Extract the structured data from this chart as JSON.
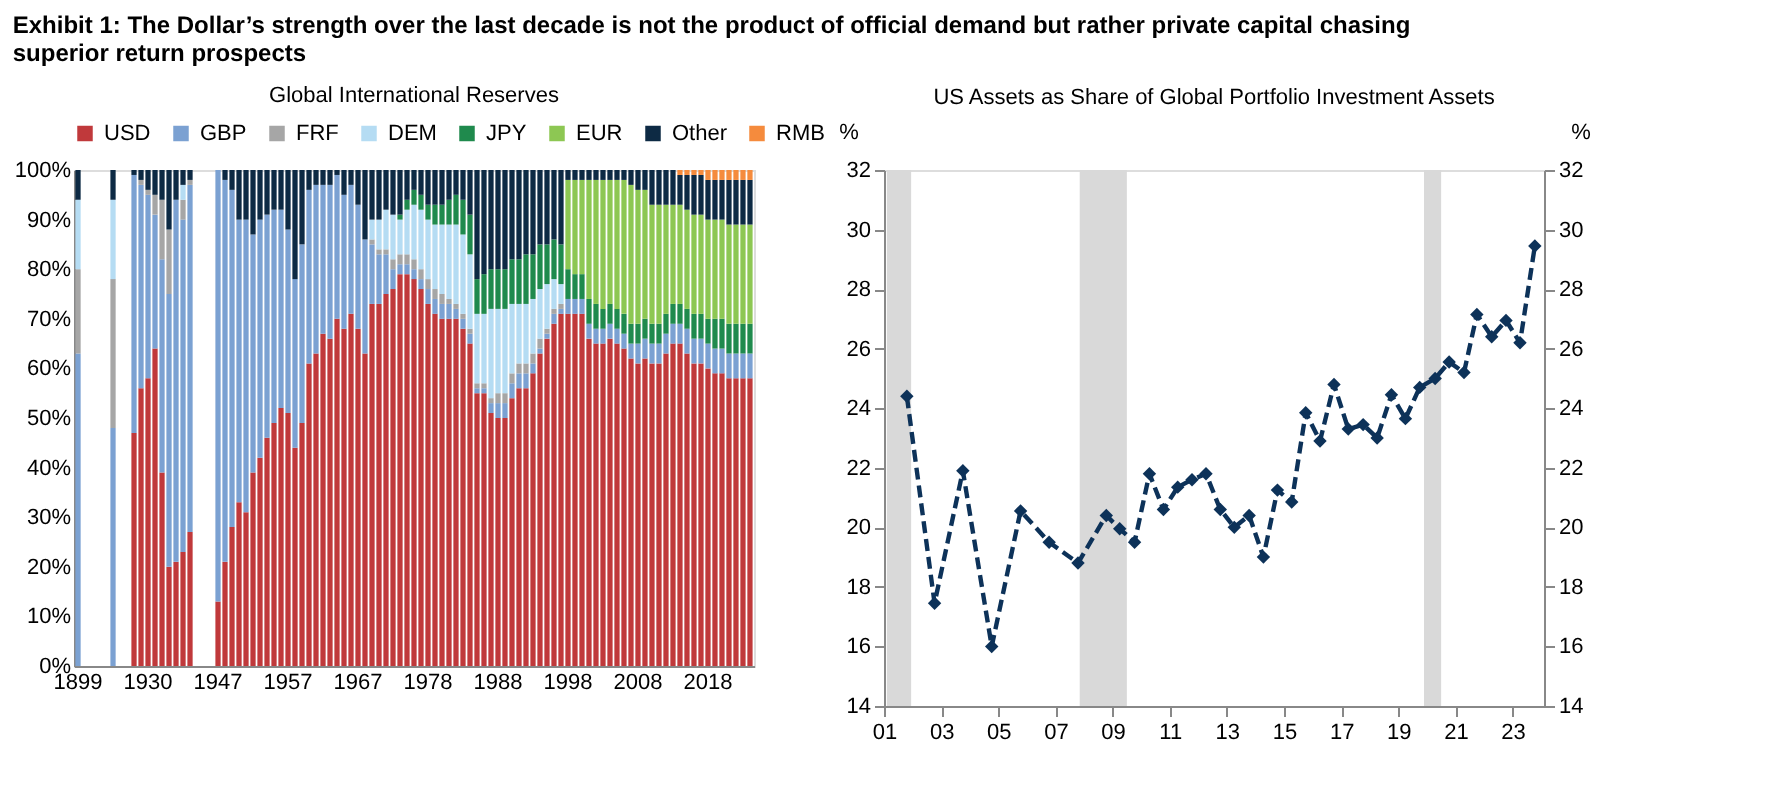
{
  "chart_data": [
    {
      "type": "bar",
      "title": "Global International Reserves",
      "stacked": true,
      "legend": "top",
      "grid": false,
      "annotations": [
        "Exhibit 1: The Dollar’s strength over the last decade is not the product of official demand but rather private capital chasing superior return prospects"
      ],
      "categories": [
        "1899",
        null,
        null,
        null,
        null,
        null,
        null,
        null,
        null,
        null,
        "1930",
        null,
        null,
        null,
        null,
        null,
        null,
        null,
        null,
        null,
        "1947",
        null,
        null,
        null,
        null,
        null,
        null,
        null,
        null,
        null,
        "1957",
        null,
        null,
        null,
        null,
        null,
        null,
        null,
        null,
        null,
        "1967",
        null,
        null,
        null,
        null,
        null,
        null,
        null,
        null,
        null,
        "1978",
        null,
        null,
        null,
        null,
        null,
        null,
        null,
        null,
        null,
        "1988",
        null,
        null,
        null,
        null,
        null,
        null,
        null,
        null,
        null,
        "1998",
        null,
        null,
        null,
        null,
        null,
        null,
        null,
        null,
        null,
        "2008",
        null,
        null,
        null,
        null,
        null,
        null,
        null,
        null,
        null,
        "2018",
        null,
        null,
        null,
        null,
        null,
        null
      ],
      "ylim": [
        0,
        100
      ],
      "yticks": [
        {
          "value": 0,
          "label": "0%"
        },
        {
          "value": 10,
          "label": "10%"
        },
        {
          "value": 20,
          "label": "20%"
        },
        {
          "value": 30,
          "label": "30%"
        },
        {
          "value": 40,
          "label": "40%"
        },
        {
          "value": 50,
          "label": "50%"
        },
        {
          "value": 60,
          "label": "60%"
        },
        {
          "value": 70,
          "label": "70%"
        },
        {
          "value": 80,
          "label": "80%"
        },
        {
          "value": 90,
          "label": "90%"
        },
        {
          "value": 100,
          "label": "100%"
        }
      ],
      "series": [
        {
          "name": "USD",
          "color": "#c0393b",
          "values": [
            null,
            null,
            null,
            null,
            null,
            null,
            null,
            null,
            47,
            56,
            58,
            64,
            39,
            20,
            21,
            23,
            27,
            null,
            null,
            null,
            13,
            21,
            28,
            33,
            31,
            39,
            42,
            46,
            49,
            52,
            51,
            44,
            49,
            61,
            63,
            67,
            66,
            70,
            68,
            71,
            68,
            63,
            73,
            73,
            75,
            76,
            79,
            79,
            78,
            76,
            73,
            71,
            70,
            70,
            70,
            68,
            65,
            55,
            55,
            51,
            50,
            50,
            54,
            56,
            56,
            59,
            63,
            66,
            69,
            71,
            71,
            71,
            71,
            66,
            65,
            65,
            66,
            65,
            64,
            62,
            61,
            62,
            61,
            61,
            63,
            65,
            65,
            63,
            61,
            61,
            60,
            59,
            59,
            58,
            58,
            58,
            58
          ]
        },
        {
          "name": "GBP",
          "color": "#7ba1d2",
          "values": [
            63,
            null,
            null,
            null,
            null,
            48,
            null,
            null,
            52,
            41,
            37,
            27,
            43,
            55,
            73,
            67,
            70,
            null,
            null,
            null,
            87,
            77,
            68,
            57,
            59,
            48,
            48,
            45,
            43,
            40,
            37,
            34,
            36,
            35,
            34,
            30,
            31,
            29,
            27,
            26,
            25,
            23,
            12,
            10,
            8,
            4,
            2,
            2,
            2,
            2,
            3,
            3,
            3,
            3,
            2,
            2,
            2,
            1,
            1,
            2,
            3,
            3,
            3,
            3,
            3,
            2,
            1,
            1,
            2,
            1,
            3,
            3,
            3,
            3,
            3,
            3,
            3,
            3,
            3,
            3,
            4,
            4,
            4,
            4,
            4,
            4,
            4,
            5,
            5,
            5,
            5,
            5,
            5,
            5,
            5,
            5,
            5
          ]
        },
        {
          "name": "FRF",
          "color": "#a6a6a6",
          "values": [
            17,
            null,
            null,
            null,
            null,
            30,
            null,
            null,
            null,
            1,
            1,
            4,
            12,
            13,
            null,
            4,
            1,
            null,
            null,
            null,
            null,
            null,
            null,
            null,
            null,
            null,
            null,
            null,
            null,
            null,
            null,
            null,
            null,
            null,
            null,
            null,
            null,
            null,
            null,
            null,
            null,
            null,
            1,
            1,
            1,
            2,
            2,
            2,
            2,
            2,
            2,
            2,
            2,
            1,
            1,
            1,
            1,
            1,
            1,
            1,
            2,
            2,
            2,
            2,
            2,
            2,
            2,
            1,
            1,
            1,
            null,
            null,
            null,
            null,
            null,
            null,
            null,
            null,
            null,
            null,
            null,
            null,
            null,
            null,
            null,
            null,
            null,
            null,
            null,
            null,
            null,
            null,
            null,
            null,
            null,
            null,
            null
          ]
        },
        {
          "name": "DEM",
          "color": "#b5dcf3",
          "values": [
            14,
            null,
            null,
            null,
            null,
            16,
            null,
            null,
            null,
            null,
            null,
            null,
            null,
            null,
            null,
            3,
            null,
            null,
            null,
            null,
            null,
            null,
            null,
            null,
            null,
            null,
            null,
            null,
            null,
            null,
            null,
            null,
            null,
            null,
            null,
            null,
            null,
            null,
            null,
            null,
            null,
            null,
            4,
            6,
            8,
            9,
            7,
            9,
            11,
            12,
            12,
            13,
            14,
            15,
            16,
            16,
            15,
            14,
            14,
            18,
            17,
            17,
            14,
            12,
            12,
            11,
            10,
            9,
            6,
            4,
            null,
            null,
            null,
            null,
            null,
            null,
            null,
            null,
            null,
            null,
            null,
            null,
            null,
            null,
            null,
            null,
            null,
            null,
            null,
            null,
            null,
            null,
            null,
            null,
            null,
            null,
            null
          ]
        },
        {
          "name": "JPY",
          "color": "#1f8a4d",
          "values": [
            null,
            null,
            null,
            null,
            null,
            null,
            null,
            null,
            null,
            null,
            null,
            null,
            null,
            null,
            null,
            null,
            null,
            null,
            null,
            null,
            null,
            null,
            null,
            null,
            null,
            null,
            null,
            null,
            null,
            null,
            null,
            null,
            null,
            null,
            null,
            null,
            null,
            null,
            null,
            null,
            null,
            null,
            null,
            null,
            null,
            null,
            1,
            2,
            3,
            3,
            3,
            4,
            4,
            5,
            6,
            7,
            8,
            7,
            8,
            8,
            8,
            8,
            9,
            9,
            10,
            9,
            9,
            8,
            8,
            8,
            6,
            5,
            5,
            5,
            5,
            4,
            4,
            4,
            4,
            4,
            4,
            4,
            4,
            4,
            4,
            4,
            4,
            4,
            5,
            5,
            5,
            6,
            6,
            6,
            6,
            6,
            6
          ]
        },
        {
          "name": "EUR",
          "color": "#8dc753",
          "values": [
            null,
            null,
            null,
            null,
            null,
            null,
            null,
            null,
            null,
            null,
            null,
            null,
            null,
            null,
            null,
            null,
            null,
            null,
            null,
            null,
            null,
            null,
            null,
            null,
            null,
            null,
            null,
            null,
            null,
            null,
            null,
            null,
            null,
            null,
            null,
            null,
            null,
            null,
            null,
            null,
            null,
            null,
            null,
            null,
            null,
            null,
            null,
            null,
            null,
            null,
            null,
            null,
            null,
            null,
            null,
            null,
            null,
            null,
            null,
            null,
            null,
            null,
            null,
            null,
            null,
            null,
            null,
            null,
            null,
            null,
            18,
            19,
            19,
            24,
            25,
            26,
            25,
            26,
            27,
            28,
            27,
            26,
            24,
            24,
            22,
            20,
            20,
            20,
            20,
            20,
            20,
            20,
            20,
            20,
            20,
            20,
            20
          ]
        },
        {
          "name": "Other",
          "color": "#0d2a44",
          "values": [
            6,
            null,
            null,
            null,
            null,
            6,
            null,
            null,
            1,
            2,
            4,
            5,
            6,
            12,
            6,
            3,
            2,
            null,
            null,
            null,
            null,
            2,
            4,
            10,
            10,
            13,
            10,
            9,
            8,
            8,
            12,
            22,
            15,
            4,
            3,
            3,
            3,
            1,
            5,
            3,
            7,
            14,
            10,
            10,
            8,
            9,
            9,
            6,
            4,
            5,
            7,
            7,
            7,
            6,
            5,
            6,
            9,
            22,
            21,
            20,
            20,
            20,
            18,
            18,
            17,
            17,
            15,
            15,
            14,
            15,
            2,
            2,
            2,
            2,
            2,
            2,
            2,
            2,
            2,
            3,
            4,
            4,
            7,
            7,
            7,
            7,
            6,
            7,
            8,
            8,
            8,
            8,
            8,
            9,
            9,
            9,
            9
          ]
        },
        {
          "name": "RMB",
          "color": "#f58b3d",
          "values": [
            null,
            null,
            null,
            null,
            null,
            null,
            null,
            null,
            null,
            null,
            null,
            null,
            null,
            null,
            null,
            null,
            null,
            null,
            null,
            null,
            null,
            null,
            null,
            null,
            null,
            null,
            null,
            null,
            null,
            null,
            null,
            null,
            null,
            null,
            null,
            null,
            null,
            null,
            null,
            null,
            null,
            null,
            null,
            null,
            null,
            null,
            null,
            null,
            null,
            null,
            null,
            null,
            null,
            null,
            null,
            null,
            null,
            null,
            null,
            null,
            null,
            null,
            null,
            null,
            null,
            null,
            null,
            null,
            null,
            null,
            null,
            null,
            null,
            null,
            null,
            null,
            null,
            null,
            null,
            null,
            null,
            null,
            null,
            null,
            null,
            null,
            1,
            1,
            1,
            1,
            2,
            2,
            2,
            2,
            2,
            2,
            2
          ]
        }
      ]
    },
    {
      "type": "line",
      "title": "US Assets as Share of Global Portfolio Investment Assets",
      "ylabel": "%",
      "y2label": "%",
      "grid": false,
      "legend": false,
      "marker": "diamond",
      "line_style": "dashed",
      "xlim": [
        2001,
        2024.1
      ],
      "xticks": [
        {
          "value": 2001,
          "label": "01"
        },
        {
          "value": 2003,
          "label": "03"
        },
        {
          "value": 2005,
          "label": "05"
        },
        {
          "value": 2007,
          "label": "07"
        },
        {
          "value": 2009,
          "label": "09"
        },
        {
          "value": 2011,
          "label": "11"
        },
        {
          "value": 2013,
          "label": "13"
        },
        {
          "value": 2015,
          "label": "15"
        },
        {
          "value": 2017,
          "label": "17"
        },
        {
          "value": 2019,
          "label": "19"
        },
        {
          "value": 2021,
          "label": "21"
        },
        {
          "value": 2023,
          "label": "23"
        }
      ],
      "ylim": [
        14,
        32
      ],
      "yticks": [
        14,
        16,
        18,
        20,
        22,
        24,
        26,
        28,
        30,
        32
      ],
      "y2lim": [
        14,
        32
      ],
      "y2ticks": [
        14,
        16,
        18,
        20,
        22,
        24,
        26,
        28,
        30,
        32
      ],
      "bands": [
        {
          "axis": "x",
          "from": 2001.1,
          "to": 2001.95,
          "color": "#d9d9d9"
        },
        {
          "axis": "x",
          "from": 2007.85,
          "to": 2009.5,
          "color": "#d9d9d9"
        },
        {
          "axis": "x",
          "from": 2019.9,
          "to": 2020.5,
          "color": "#d9d9d9"
        }
      ],
      "series": [
        {
          "color": "#0d3259",
          "x": [
            2001.8,
            2002.77,
            2003.76,
            2004.77,
            2005.78,
            2006.78,
            2007.79,
            2008.78,
            2009.25,
            2009.77,
            2010.29,
            2010.78,
            2011.28,
            2011.78,
            2012.27,
            2012.77,
            2013.26,
            2013.78,
            2014.28,
            2014.77,
            2015.27,
            2015.76,
            2016.26,
            2016.75,
            2017.25,
            2017.77,
            2018.26,
            2018.76,
            2019.25,
            2019.75,
            2020.29,
            2020.78,
            2021.3,
            2021.75,
            2022.27,
            2022.77,
            2023.26,
            2023.78
          ],
          "values": [
            24.4,
            17.45,
            21.9,
            16.0,
            20.55,
            19.5,
            18.8,
            20.4,
            19.95,
            19.5,
            21.8,
            20.6,
            21.35,
            21.6,
            21.8,
            20.6,
            20.0,
            20.4,
            19.0,
            21.25,
            20.85,
            23.85,
            22.9,
            24.8,
            23.3,
            23.45,
            23.0,
            24.45,
            23.65,
            24.7,
            25.0,
            25.55,
            25.2,
            27.15,
            26.4,
            26.95,
            26.2,
            29.45
          ]
        }
      ]
    }
  ]
}
